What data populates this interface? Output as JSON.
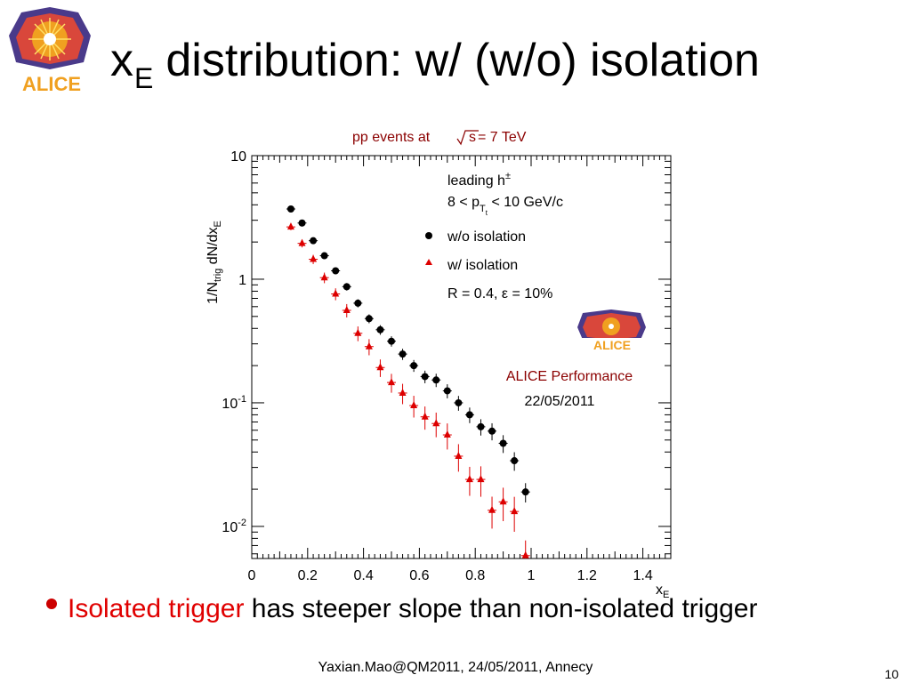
{
  "slide": {
    "title_main": "x",
    "title_sub": "E",
    "title_rest": "distribution: w/ (w/o) isolation",
    "logo_text": "ALICE",
    "bullet": {
      "highlight": "Isolated trigger",
      "rest": " has steeper slope than non-isolated trigger",
      "highlight_color": "#e00000"
    },
    "footer": "Yaxian.Mao@QM2011, 24/05/2011, Annecy",
    "page_number": "10"
  },
  "chart_data": {
    "type": "scatter",
    "title_prefix": "pp events at",
    "title_sqrt": "s",
    "title_suffix": " = 7 TeV",
    "title_color": "#8b0000",
    "xlabel_main": "x",
    "xlabel_sub": "E",
    "ylabel_parts": [
      "1/N",
      "trig",
      " dN/dx",
      "E"
    ],
    "xlim": [
      0,
      1.5
    ],
    "ylim": [
      0.0055,
      10
    ],
    "ylog": true,
    "x_ticks": [
      0,
      0.2,
      0.4,
      0.6,
      0.8,
      1,
      1.2,
      1.4
    ],
    "x_tick_labels": [
      "0",
      "0.2",
      "0.4",
      "0.6",
      "0.8",
      "1",
      "1.2",
      "1.4"
    ],
    "y_ticks": [
      10,
      1,
      0.1,
      0.01
    ],
    "y_tick_labels": [
      {
        "base": "10",
        "exp": ""
      },
      {
        "base": "1",
        "exp": ""
      },
      {
        "base": "10",
        "exp": "-1"
      },
      {
        "base": "10",
        "exp": "-2"
      }
    ],
    "legend": {
      "header_line1": "leading h",
      "header_line1_sup": "±",
      "header_line2_pre": "8 < p",
      "header_line2_sub": "T",
      "header_line2_subsub": "t",
      "header_line2_post": " < 10 GeV/c",
      "params": "R = 0.4, ε = 10%"
    },
    "annotations": {
      "performance": "ALICE Performance",
      "performance_color": "#8b0000",
      "date": "22/05/2011"
    },
    "series": [
      {
        "name": "w/o isolation",
        "marker": "circle",
        "color": "#000000",
        "x": [
          0.14,
          0.18,
          0.22,
          0.26,
          0.3,
          0.34,
          0.38,
          0.42,
          0.46,
          0.5,
          0.54,
          0.58,
          0.62,
          0.66,
          0.7,
          0.74,
          0.78,
          0.82,
          0.86,
          0.9,
          0.94,
          0.98
        ],
        "y": [
          3.7,
          2.85,
          2.05,
          1.55,
          1.17,
          0.87,
          0.64,
          0.48,
          0.39,
          0.315,
          0.248,
          0.2,
          0.163,
          0.153,
          0.125,
          0.1,
          0.08,
          0.064,
          0.059,
          0.047,
          0.034,
          0.019
        ]
      },
      {
        "name": "w/ isolation",
        "marker": "triangle",
        "color": "#dd0000",
        "x": [
          0.14,
          0.18,
          0.22,
          0.26,
          0.3,
          0.34,
          0.38,
          0.42,
          0.46,
          0.5,
          0.54,
          0.58,
          0.62,
          0.66,
          0.7,
          0.74,
          0.78,
          0.82,
          0.86,
          0.9,
          0.94,
          0.98
        ],
        "y": [
          2.65,
          1.95,
          1.45,
          1.03,
          0.76,
          0.56,
          0.365,
          0.285,
          0.193,
          0.146,
          0.12,
          0.095,
          0.077,
          0.068,
          0.055,
          0.037,
          0.024,
          0.024,
          0.0135,
          0.0158,
          0.0132,
          0.0058
        ]
      }
    ]
  }
}
